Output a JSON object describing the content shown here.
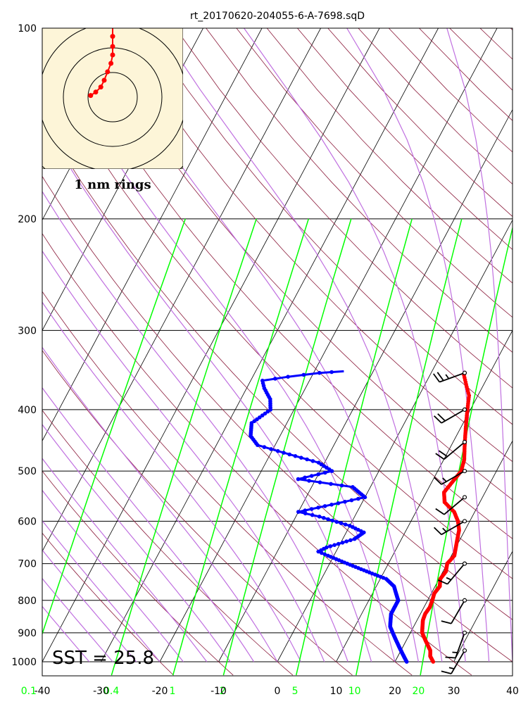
{
  "chart_data": {
    "type": "scatter",
    "title": "rt_20170620-204055-6-A-7698.sqD",
    "x_axis": {
      "range": [
        -40,
        40
      ],
      "ticks": [
        "-40",
        "-30",
        "-20",
        "-10",
        "0",
        "10",
        "20",
        "30",
        "40"
      ]
    },
    "y_axis": {
      "scale": "log",
      "range": [
        1000,
        100
      ],
      "ticks": [
        "100",
        "200",
        "300",
        "400",
        "500",
        "600",
        "700",
        "800",
        "900",
        "1000"
      ]
    },
    "mixing_ratio_labels": [
      "0.1",
      "0.4",
      "1",
      "2",
      "5",
      "10",
      "20"
    ],
    "sst_label": "SST = 25.8",
    "hodograph_label": "1 nm rings",
    "series": [
      {
        "name": "",
        "color": "#ff0000",
        "points": [
          [
            26.5,
            1000
          ],
          [
            25.5,
            980
          ],
          [
            25,
            960
          ],
          [
            24,
            940
          ],
          [
            23,
            920
          ],
          [
            22,
            900
          ],
          [
            21.5,
            880
          ],
          [
            21,
            860
          ],
          [
            20.8,
            840
          ],
          [
            21,
            820
          ],
          [
            20.8,
            800
          ],
          [
            20.5,
            780
          ],
          [
            20.8,
            760
          ],
          [
            20.2,
            740
          ],
          [
            20.5,
            720
          ],
          [
            20,
            700
          ],
          [
            20.5,
            680
          ],
          [
            20,
            660
          ],
          [
            19.5,
            640
          ],
          [
            19,
            620
          ],
          [
            18,
            600
          ],
          [
            16.5,
            580
          ],
          [
            14,
            560
          ],
          [
            13,
            540
          ],
          [
            13.5,
            520
          ],
          [
            14,
            500
          ],
          [
            13.5,
            480
          ],
          [
            12.5,
            460
          ],
          [
            11.5,
            440
          ],
          [
            10.5,
            420
          ],
          [
            9.5,
            400
          ],
          [
            8.5,
            380
          ],
          [
            7,
            365
          ],
          [
            5.5,
            350
          ]
        ]
      },
      {
        "name": "",
        "color": "#0000ff",
        "points": [
          [
            22,
            1000
          ],
          [
            21,
            980
          ],
          [
            20,
            960
          ],
          [
            19,
            940
          ],
          [
            18,
            920
          ],
          [
            17,
            900
          ],
          [
            16,
            880
          ],
          [
            15.5,
            860
          ],
          [
            15,
            840
          ],
          [
            15,
            820
          ],
          [
            15,
            800
          ],
          [
            14,
            780
          ],
          [
            13,
            760
          ],
          [
            11,
            740
          ],
          [
            7,
            720
          ],
          [
            3,
            700
          ],
          [
            -1,
            680
          ],
          [
            -3,
            670
          ],
          [
            -2,
            660
          ],
          [
            2,
            640
          ],
          [
            3,
            625
          ],
          [
            0,
            610
          ],
          [
            -6,
            590
          ],
          [
            -10,
            580
          ],
          [
            -5,
            565
          ],
          [
            0,
            550
          ],
          [
            -3,
            530
          ],
          [
            -13,
            515
          ],
          [
            -8,
            500
          ],
          [
            -11,
            485
          ],
          [
            -19,
            465
          ],
          [
            -23,
            455
          ],
          [
            -25,
            440
          ],
          [
            -26,
            420
          ],
          [
            -24,
            400
          ],
          [
            -25,
            385
          ],
          [
            -27,
            370
          ],
          [
            -28,
            360
          ],
          [
            -24,
            355
          ],
          [
            -19,
            350
          ],
          [
            -15,
            348
          ]
        ]
      }
    ],
    "hodograph": {
      "color": "#ff0000",
      "points": [
        [
          0,
          4.2
        ],
        [
          0,
          3.6
        ],
        [
          0,
          3.0
        ],
        [
          0,
          2.5
        ],
        [
          -0.1,
          2.0
        ],
        [
          -0.3,
          1.5
        ],
        [
          -0.5,
          1.0
        ],
        [
          -0.7,
          0.6
        ],
        [
          -1.0,
          0.3
        ],
        [
          -1.3,
          0.1
        ]
      ]
    },
    "wind_barbs": [
      {
        "pressure": 350,
        "dir": 290,
        "spd": 25
      },
      {
        "pressure": 400,
        "dir": 300,
        "spd": 20
      },
      {
        "pressure": 450,
        "dir": 310,
        "spd": 20
      },
      {
        "pressure": 500,
        "dir": 300,
        "spd": 15
      },
      {
        "pressure": 550,
        "dir": 310,
        "spd": 10
      },
      {
        "pressure": 600,
        "dir": 300,
        "spd": 15
      },
      {
        "pressure": 700,
        "dir": 320,
        "spd": 15
      },
      {
        "pressure": 800,
        "dir": 330,
        "spd": 10
      },
      {
        "pressure": 900,
        "dir": 340,
        "spd": 15
      },
      {
        "pressure": 960,
        "dir": 330,
        "spd": 15
      }
    ],
    "colors": {
      "isotherm": "#000000",
      "dry_adiabat": "#8b1a3a",
      "moist_adiabat": "#c070e0",
      "mixing_ratio": "#00ff00",
      "temperature": "#ff0000",
      "dewpoint": "#0000ff",
      "hodograph_bg": "#fdf5d8"
    }
  }
}
